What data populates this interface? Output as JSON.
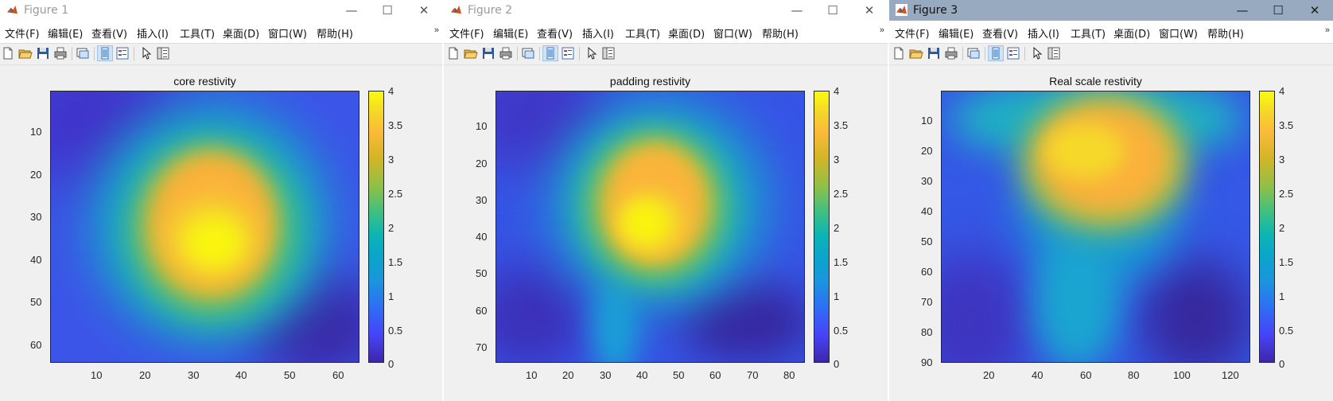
{
  "menu_items": [
    "文件(F)",
    "编辑(E)",
    "查看(V)",
    "插入(I)",
    "工具(T)",
    "桌面(D)",
    "窗口(W)",
    "帮助(H)"
  ],
  "menu_overflow": "»",
  "window_controls": {
    "minimize": "—",
    "maximize": "☐",
    "close": "✕"
  },
  "toolbar_icons": [
    "new-figure-icon",
    "open-file-icon",
    "save-icon",
    "print-icon",
    "link-plot-icon",
    "dock-figure-icon",
    "insert-legend-icon",
    "edit-plot-cursor-icon",
    "property-inspector-icon"
  ],
  "colormap": [
    "#3e26a8",
    "#4743f8",
    "#2f6df7",
    "#1996de",
    "#0cb5b3",
    "#3bbf85",
    "#8fc046",
    "#d1b527",
    "#fbba39",
    "#f9fb0e"
  ],
  "colorbar_ticks": [
    "0",
    "0.5",
    "1",
    "1.5",
    "2",
    "2.5",
    "3",
    "3.5",
    "4"
  ],
  "colorbar_range": [
    0,
    4
  ],
  "figures": [
    {
      "window_title": "Figure 1",
      "active": false,
      "plot_title": "core restivity",
      "x_ticks": [
        "10",
        "20",
        "30",
        "40",
        "50",
        "60"
      ],
      "y_ticks": [
        "10",
        "20",
        "30",
        "40",
        "50",
        "60"
      ],
      "x_range": [
        0.5,
        64.5
      ],
      "y_range": [
        0.5,
        64.5
      ]
    },
    {
      "window_title": "Figure 2",
      "active": false,
      "plot_title": "padding restivity",
      "x_ticks": [
        "10",
        "20",
        "30",
        "40",
        "50",
        "60",
        "70",
        "80"
      ],
      "y_ticks": [
        "10",
        "20",
        "30",
        "40",
        "50",
        "60",
        "70"
      ],
      "x_range": [
        0.5,
        84.5
      ],
      "y_range": [
        0.5,
        74.5
      ]
    },
    {
      "window_title": "Figure 3",
      "active": true,
      "plot_title": "Real scale restivity",
      "x_ticks": [
        "20",
        "40",
        "60",
        "80",
        "100",
        "120"
      ],
      "y_ticks": [
        "10",
        "20",
        "30",
        "40",
        "50",
        "60",
        "70",
        "80",
        "90"
      ],
      "x_range": [
        0.5,
        128.5
      ],
      "y_range": [
        0.5,
        90.5
      ]
    }
  ]
}
